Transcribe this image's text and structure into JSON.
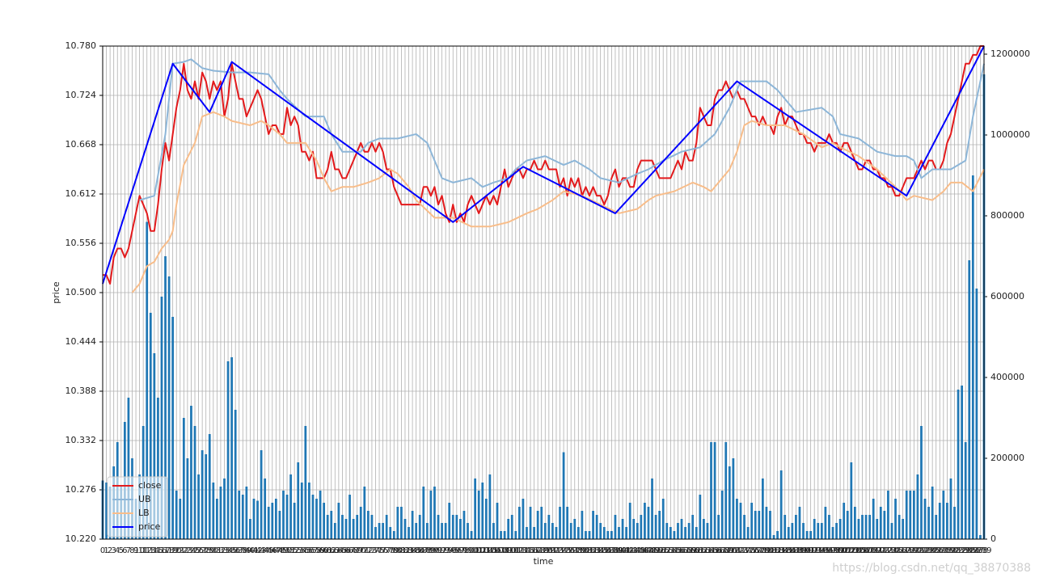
{
  "chart_data": {
    "type": "line",
    "xlabel": "time",
    "ylabel": "price",
    "watermark": "https://blog.csdn.net/qq_38870388",
    "categories": [
      0,
      1,
      2,
      3,
      4,
      5,
      6,
      7,
      8,
      9,
      10,
      11,
      12,
      13,
      14,
      15,
      16,
      17,
      18,
      19,
      20,
      21,
      22,
      23,
      24,
      25,
      26,
      27,
      28,
      29,
      30,
      31,
      32,
      33,
      34,
      35,
      36,
      37,
      38,
      39,
      40,
      41,
      42,
      43,
      44,
      45,
      46,
      47,
      48,
      49,
      50,
      51,
      52,
      53,
      54,
      55,
      56,
      57,
      58,
      59,
      60,
      61,
      62,
      63,
      64,
      65,
      66,
      67,
      68,
      69,
      70,
      71,
      72,
      73,
      74,
      75,
      76,
      77,
      78,
      79,
      80,
      81,
      82,
      83,
      84,
      85,
      86,
      87,
      88,
      89,
      90,
      91,
      92,
      93,
      94,
      95,
      96,
      97,
      98,
      99,
      100,
      101,
      102,
      103,
      104,
      105,
      106,
      107,
      108,
      109,
      110,
      111,
      112,
      113,
      114,
      115,
      116,
      117,
      118,
      119,
      120,
      121,
      122,
      123,
      124,
      125,
      126,
      127,
      128,
      129,
      130,
      131,
      132,
      133,
      134,
      135,
      136,
      137,
      138,
      139,
      140,
      141,
      142,
      143,
      144,
      145,
      146,
      147,
      148,
      149,
      150,
      151,
      152,
      153,
      154,
      155,
      156,
      157,
      158,
      159,
      160,
      161,
      162,
      163,
      164,
      165,
      166,
      167,
      168,
      169,
      170,
      171,
      172,
      173,
      174,
      175,
      176,
      177,
      178,
      179,
      180,
      181,
      182,
      183,
      184,
      185,
      186,
      187,
      188,
      189,
      190,
      191,
      192,
      193,
      194,
      195,
      196,
      197,
      198,
      199,
      200,
      201,
      202,
      203,
      204,
      205,
      206,
      207,
      208,
      209,
      210,
      211,
      212,
      213,
      214,
      215,
      216,
      217,
      218,
      219,
      220,
      221,
      222,
      223,
      224,
      225,
      226,
      227,
      228,
      229,
      230,
      231,
      232,
      233,
      234,
      235,
      236,
      237,
      238,
      239
    ],
    "ylim": [
      10.22,
      10.78
    ],
    "yticks": [
      {
        "value": 10.22,
        "label": "10.220"
      },
      10.276,
      10.332,
      10.388,
      10.444,
      {
        "value": 10.5,
        "label": "10.500"
      },
      10.556,
      10.612,
      10.668,
      10.724,
      {
        "value": 10.78,
        "label": "10.780"
      }
    ],
    "y2lim": [
      0,
      1220000
    ],
    "y2ticks": [
      0,
      200000,
      400000,
      600000,
      800000,
      1000000,
      1200000
    ],
    "grid": true,
    "legend": "lower left",
    "series": [
      {
        "type": "bar",
        "axis": "y2",
        "color": "#1f77b4",
        "values": [
          145000,
          140000,
          130000,
          180000,
          240000,
          130000,
          290000,
          350000,
          200000,
          100000,
          160000,
          280000,
          785000,
          560000,
          460000,
          350000,
          600000,
          700000,
          650000,
          550000,
          120000,
          100000,
          300000,
          200000,
          330000,
          280000,
          160000,
          220000,
          210000,
          260000,
          140000,
          100000,
          130000,
          150000,
          440000,
          450000,
          320000,
          120000,
          110000,
          130000,
          50000,
          100000,
          95000,
          220000,
          150000,
          80000,
          90000,
          100000,
          70000,
          120000,
          110000,
          160000,
          90000,
          190000,
          140000,
          280000,
          140000,
          110000,
          100000,
          120000,
          90000,
          60000,
          70000,
          40000,
          90000,
          60000,
          50000,
          110000,
          50000,
          60000,
          80000,
          130000,
          70000,
          60000,
          30000,
          40000,
          40000,
          60000,
          30000,
          20000,
          80000,
          80000,
          50000,
          30000,
          70000,
          40000,
          60000,
          130000,
          40000,
          120000,
          130000,
          60000,
          40000,
          40000,
          90000,
          60000,
          60000,
          50000,
          70000,
          40000,
          20000,
          150000,
          120000,
          140000,
          100000,
          160000,
          40000,
          90000,
          20000,
          20000,
          50000,
          60000,
          20000,
          80000,
          100000,
          30000,
          80000,
          30000,
          70000,
          80000,
          40000,
          60000,
          40000,
          30000,
          80000,
          215000,
          80000,
          40000,
          50000,
          30000,
          70000,
          20000,
          20000,
          70000,
          60000,
          40000,
          30000,
          20000,
          20000,
          60000,
          30000,
          50000,
          30000,
          90000,
          50000,
          40000,
          60000,
          90000,
          80000,
          150000,
          60000,
          70000,
          100000,
          40000,
          30000,
          20000,
          40000,
          50000,
          30000,
          40000,
          60000,
          30000,
          110000,
          50000,
          40000,
          240000,
          240000,
          60000,
          120000,
          240000,
          180000,
          200000,
          100000,
          90000,
          60000,
          30000,
          90000,
          70000,
          70000,
          150000,
          80000,
          70000,
          10000,
          20000,
          170000,
          60000,
          30000,
          40000,
          60000,
          80000,
          40000,
          20000,
          20000,
          50000,
          40000,
          40000,
          80000,
          60000,
          30000,
          40000,
          50000,
          90000,
          70000,
          190000,
          80000,
          50000,
          60000,
          60000,
          60000,
          100000,
          50000,
          80000,
          70000,
          120000,
          40000,
          100000,
          60000,
          50000,
          120000,
          120000,
          120000,
          160000,
          280000,
          100000,
          80000,
          130000,
          60000,
          90000,
          120000,
          90000,
          150000,
          80000,
          370000,
          380000,
          240000,
          690000,
          900000,
          620000,
          10000,
          1150000
        ]
      },
      {
        "name": "close",
        "color": "#e31a1c",
        "width": 2,
        "values": [
          10.52,
          10.52,
          10.51,
          10.54,
          10.55,
          10.55,
          10.54,
          10.55,
          10.57,
          10.59,
          10.61,
          10.6,
          10.59,
          10.57,
          10.57,
          10.6,
          10.64,
          10.67,
          10.65,
          10.68,
          10.71,
          10.73,
          10.76,
          10.73,
          10.72,
          10.74,
          10.72,
          10.75,
          10.74,
          10.72,
          10.74,
          10.73,
          10.74,
          10.7,
          10.72,
          10.76,
          10.74,
          10.72,
          10.72,
          10.7,
          10.71,
          10.72,
          10.73,
          10.72,
          10.7,
          10.68,
          10.69,
          10.69,
          10.68,
          10.68,
          10.71,
          10.69,
          10.7,
          10.69,
          10.66,
          10.66,
          10.65,
          10.66,
          10.63,
          10.63,
          10.63,
          10.64,
          10.66,
          10.64,
          10.64,
          10.63,
          10.63,
          10.64,
          10.65,
          10.66,
          10.67,
          10.66,
          10.66,
          10.67,
          10.66,
          10.67,
          10.66,
          10.64,
          10.64,
          10.62,
          10.61,
          10.6,
          10.6,
          10.6,
          10.6,
          10.6,
          10.6,
          10.62,
          10.62,
          10.61,
          10.62,
          10.6,
          10.61,
          10.59,
          10.58,
          10.6,
          10.58,
          10.59,
          10.58,
          10.6,
          10.61,
          10.6,
          10.59,
          10.6,
          10.61,
          10.6,
          10.61,
          10.6,
          10.62,
          10.64,
          10.62,
          10.63,
          10.64,
          10.64,
          10.63,
          10.64,
          10.64,
          10.65,
          10.64,
          10.64,
          10.65,
          10.64,
          10.64,
          10.64,
          10.62,
          10.63,
          10.61,
          10.63,
          10.62,
          10.63,
          10.61,
          10.62,
          10.61,
          10.62,
          10.61,
          10.61,
          10.6,
          10.61,
          10.63,
          10.64,
          10.62,
          10.63,
          10.63,
          10.62,
          10.62,
          10.64,
          10.65,
          10.65,
          10.65,
          10.65,
          10.64,
          10.63,
          10.63,
          10.63,
          10.63,
          10.64,
          10.65,
          10.64,
          10.66,
          10.65,
          10.65,
          10.67,
          10.71,
          10.7,
          10.69,
          10.69,
          10.72,
          10.73,
          10.73,
          10.74,
          10.73,
          10.72,
          10.73,
          10.72,
          10.72,
          10.71,
          10.7,
          10.7,
          10.69,
          10.7,
          10.69,
          10.69,
          10.68,
          10.7,
          10.71,
          10.69,
          10.7,
          10.7,
          10.69,
          10.68,
          10.68,
          10.67,
          10.67,
          10.66,
          10.67,
          10.67,
          10.67,
          10.68,
          10.67,
          10.67,
          10.66,
          10.67,
          10.67,
          10.66,
          10.65,
          10.64,
          10.64,
          10.65,
          10.65,
          10.64,
          10.64,
          10.63,
          10.63,
          10.62,
          10.62,
          10.61,
          10.61,
          10.62,
          10.63,
          10.63,
          10.63,
          10.64,
          10.65,
          10.64,
          10.65,
          10.65,
          10.64,
          10.64,
          10.65,
          10.67,
          10.68,
          10.7,
          10.72,
          10.74,
          10.76,
          10.76,
          10.77,
          10.77,
          10.78,
          10.78
        ]
      },
      {
        "name": "UB",
        "color": "#8db6d8",
        "width": 2,
        "x": [
          10,
          14,
          17,
          19,
          22,
          24,
          27,
          30,
          35,
          40,
          45,
          48,
          50,
          55,
          60,
          62,
          65,
          70,
          72,
          75,
          80,
          85,
          88,
          90,
          92,
          95,
          100,
          103,
          106,
          110,
          112,
          115,
          120,
          125,
          128,
          132,
          135,
          140,
          145,
          148,
          152,
          157,
          162,
          166,
          170,
          173,
          180,
          183,
          185,
          188,
          195,
          198,
          200,
          205,
          210,
          215,
          218,
          220,
          222,
          225,
          230,
          234,
          236,
          239
        ],
        "values": [
          10.605,
          10.61,
          10.68,
          10.76,
          10.762,
          10.765,
          10.755,
          10.752,
          10.75,
          10.75,
          10.748,
          10.73,
          10.72,
          10.7,
          10.7,
          10.68,
          10.66,
          10.66,
          10.67,
          10.675,
          10.675,
          10.68,
          10.67,
          10.65,
          10.63,
          10.625,
          10.63,
          10.62,
          10.625,
          10.63,
          10.64,
          10.65,
          10.655,
          10.645,
          10.65,
          10.64,
          10.63,
          10.625,
          10.635,
          10.64,
          10.65,
          10.66,
          10.665,
          10.68,
          10.71,
          10.74,
          10.74,
          10.73,
          10.72,
          10.705,
          10.71,
          10.7,
          10.68,
          10.675,
          10.66,
          10.655,
          10.655,
          10.65,
          10.63,
          10.64,
          10.64,
          10.65,
          10.7,
          10.76
        ]
      },
      {
        "name": "LB",
        "color": "#f8bd8a",
        "width": 2,
        "x": [
          8,
          10,
          12,
          14,
          16,
          18,
          19,
          20,
          22,
          25,
          27,
          30,
          33,
          35,
          40,
          43,
          45,
          48,
          50,
          55,
          58,
          60,
          62,
          65,
          68,
          72,
          75,
          78,
          80,
          83,
          85,
          90,
          95,
          100,
          105,
          110,
          115,
          118,
          120,
          122,
          125,
          130,
          135,
          140,
          145,
          148,
          150,
          155,
          160,
          163,
          165,
          168,
          170,
          172,
          174,
          176,
          180,
          185,
          190,
          195,
          198,
          200,
          205,
          210,
          215,
          218,
          220,
          225,
          228,
          230,
          233,
          236,
          239
        ],
        "values": [
          10.5,
          10.51,
          10.53,
          10.535,
          10.55,
          10.56,
          10.57,
          10.6,
          10.645,
          10.67,
          10.7,
          10.705,
          10.7,
          10.695,
          10.69,
          10.695,
          10.69,
          10.68,
          10.67,
          10.67,
          10.65,
          10.63,
          10.615,
          10.62,
          10.62,
          10.625,
          10.63,
          10.64,
          10.635,
          10.62,
          10.605,
          10.585,
          10.585,
          10.575,
          10.575,
          10.58,
          10.59,
          10.595,
          10.6,
          10.605,
          10.615,
          10.61,
          10.6,
          10.59,
          10.595,
          10.605,
          10.61,
          10.615,
          10.625,
          10.62,
          10.615,
          10.63,
          10.64,
          10.66,
          10.69,
          10.695,
          10.69,
          10.69,
          10.68,
          10.665,
          10.67,
          10.665,
          10.655,
          10.64,
          10.62,
          10.605,
          10.61,
          10.605,
          10.615,
          10.625,
          10.625,
          10.615,
          10.64
        ]
      },
      {
        "name": "price",
        "color": "#0000ff",
        "width": 2,
        "x": [
          0,
          19,
          29,
          35,
          95,
          114,
          139,
          172,
          218,
          239
        ],
        "values": [
          10.51,
          10.76,
          10.705,
          10.762,
          10.58,
          10.643,
          10.59,
          10.74,
          10.61,
          10.78
        ]
      }
    ]
  }
}
